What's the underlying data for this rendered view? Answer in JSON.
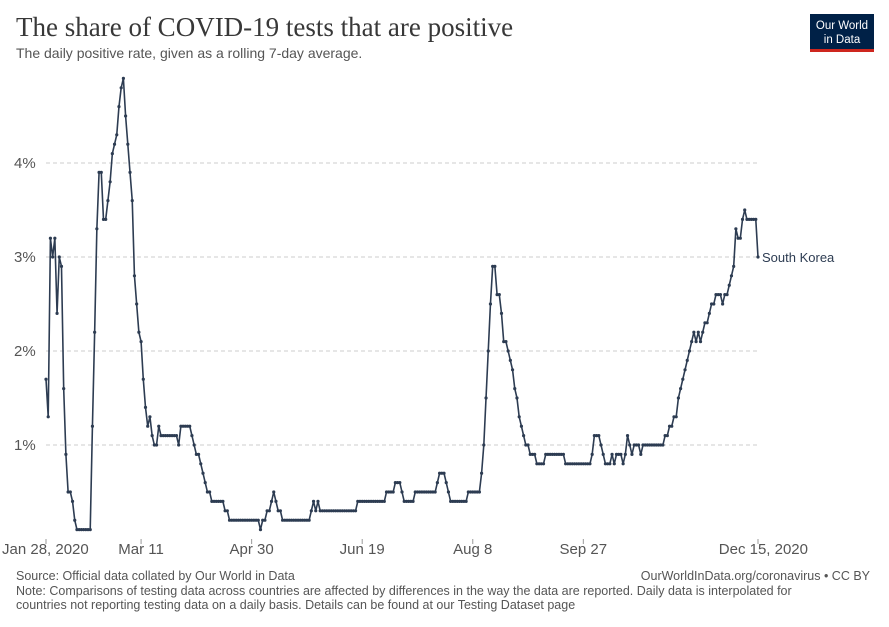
{
  "logo": [
    "Our World",
    "in Data"
  ],
  "footer": {
    "source": "Source: Official data collated by Our World in Data",
    "credit": "OurWorldInData.org/coronavirus • CC BY",
    "note": [
      "Note: Comparisons of testing data across countries are affected by differences in the way the data are reported. Daily data is interpolated for",
      "countries not reporting testing data on a daily basis. Details can be found at our Testing Dataset page"
    ]
  },
  "chart_data": {
    "type": "line",
    "title": "The share of COVID-19 tests that are positive",
    "subtitle": "The daily positive rate, given as a rolling 7-day average.",
    "xlim": [
      "2020-01-28",
      "2020-12-15"
    ],
    "xticks": [
      {
        "value": "2020-01-28",
        "label": "Jan 28, 2020"
      },
      {
        "value": "2020-03-11",
        "label": "Mar 11"
      },
      {
        "value": "2020-04-30",
        "label": "Apr 30"
      },
      {
        "value": "2020-06-19",
        "label": "Jun 19"
      },
      {
        "value": "2020-08-08",
        "label": "Aug 8"
      },
      {
        "value": "2020-09-27",
        "label": "Sep 27"
      },
      {
        "value": "2020-12-15",
        "label": "Dec 15, 2020"
      }
    ],
    "ylim": [
      0,
      5
    ],
    "yticks": [
      {
        "value": 1,
        "label": "1%"
      },
      {
        "value": 2,
        "label": "2%"
      },
      {
        "value": 3,
        "label": "3%"
      },
      {
        "value": 4,
        "label": "4%"
      }
    ],
    "grid": true,
    "x": [
      "2020-01-28",
      "2020-01-29",
      "2020-01-30",
      "2020-01-31",
      "2020-02-01",
      "2020-02-02",
      "2020-02-03",
      "2020-02-04",
      "2020-02-05",
      "2020-02-06",
      "2020-02-07",
      "2020-02-08",
      "2020-02-09",
      "2020-02-10",
      "2020-02-11",
      "2020-02-12",
      "2020-02-13",
      "2020-02-14",
      "2020-02-15",
      "2020-02-16",
      "2020-02-17",
      "2020-02-18",
      "2020-02-19",
      "2020-02-20",
      "2020-02-21",
      "2020-02-22",
      "2020-02-23",
      "2020-02-24",
      "2020-02-25",
      "2020-02-26",
      "2020-02-27",
      "2020-02-28",
      "2020-02-29",
      "2020-03-01",
      "2020-03-02",
      "2020-03-03",
      "2020-03-04",
      "2020-03-05",
      "2020-03-06",
      "2020-03-07",
      "2020-03-08",
      "2020-03-09",
      "2020-03-10",
      "2020-03-11",
      "2020-03-12",
      "2020-03-13",
      "2020-03-14",
      "2020-03-15",
      "2020-03-16",
      "2020-03-17",
      "2020-03-18",
      "2020-03-19",
      "2020-03-20",
      "2020-03-21",
      "2020-03-22",
      "2020-03-23",
      "2020-03-24",
      "2020-03-25",
      "2020-03-26",
      "2020-03-27",
      "2020-03-28",
      "2020-03-29",
      "2020-03-30",
      "2020-03-31",
      "2020-04-01",
      "2020-04-02",
      "2020-04-03",
      "2020-04-04",
      "2020-04-05",
      "2020-04-06",
      "2020-04-07",
      "2020-04-08",
      "2020-04-09",
      "2020-04-10",
      "2020-04-11",
      "2020-04-12",
      "2020-04-13",
      "2020-04-14",
      "2020-04-15",
      "2020-04-16",
      "2020-04-17",
      "2020-04-18",
      "2020-04-19",
      "2020-04-20",
      "2020-04-21",
      "2020-04-22",
      "2020-04-23",
      "2020-04-24",
      "2020-04-25",
      "2020-04-26",
      "2020-04-27",
      "2020-04-28",
      "2020-04-29",
      "2020-04-30",
      "2020-05-01",
      "2020-05-02",
      "2020-05-03",
      "2020-05-04",
      "2020-05-05",
      "2020-05-06",
      "2020-05-07",
      "2020-05-08",
      "2020-05-09",
      "2020-05-10",
      "2020-05-11",
      "2020-05-12",
      "2020-05-13",
      "2020-05-14",
      "2020-05-15",
      "2020-05-16",
      "2020-05-17",
      "2020-05-18",
      "2020-05-19",
      "2020-05-20",
      "2020-05-21",
      "2020-05-22",
      "2020-05-23",
      "2020-05-24",
      "2020-05-25",
      "2020-05-26",
      "2020-05-27",
      "2020-05-28",
      "2020-05-29",
      "2020-05-30",
      "2020-05-31",
      "2020-06-01",
      "2020-06-02",
      "2020-06-03",
      "2020-06-04",
      "2020-06-05",
      "2020-06-06",
      "2020-06-07",
      "2020-06-08",
      "2020-06-09",
      "2020-06-10",
      "2020-06-11",
      "2020-06-12",
      "2020-06-13",
      "2020-06-14",
      "2020-06-15",
      "2020-06-16",
      "2020-06-17",
      "2020-06-18",
      "2020-06-19",
      "2020-06-20",
      "2020-06-21",
      "2020-06-22",
      "2020-06-23",
      "2020-06-24",
      "2020-06-25",
      "2020-06-26",
      "2020-06-27",
      "2020-06-28",
      "2020-06-29",
      "2020-06-30",
      "2020-07-01",
      "2020-07-02",
      "2020-07-03",
      "2020-07-04",
      "2020-07-05",
      "2020-07-06",
      "2020-07-07",
      "2020-07-08",
      "2020-07-09",
      "2020-07-10",
      "2020-07-11",
      "2020-07-12",
      "2020-07-13",
      "2020-07-14",
      "2020-07-15",
      "2020-07-16",
      "2020-07-17",
      "2020-07-18",
      "2020-07-19",
      "2020-07-20",
      "2020-07-21",
      "2020-07-22",
      "2020-07-23",
      "2020-07-24",
      "2020-07-25",
      "2020-07-26",
      "2020-07-27",
      "2020-07-28",
      "2020-07-29",
      "2020-07-30",
      "2020-07-31",
      "2020-08-01",
      "2020-08-02",
      "2020-08-03",
      "2020-08-04",
      "2020-08-05",
      "2020-08-06",
      "2020-08-07",
      "2020-08-08",
      "2020-08-09",
      "2020-08-10",
      "2020-08-11",
      "2020-08-12",
      "2020-08-13",
      "2020-08-14",
      "2020-08-15",
      "2020-08-16",
      "2020-08-17",
      "2020-08-18",
      "2020-08-19",
      "2020-08-20",
      "2020-08-21",
      "2020-08-22",
      "2020-08-23",
      "2020-08-24",
      "2020-08-25",
      "2020-08-26",
      "2020-08-27",
      "2020-08-28",
      "2020-08-29",
      "2020-08-30",
      "2020-08-31",
      "2020-09-01",
      "2020-09-02",
      "2020-09-03",
      "2020-09-04",
      "2020-09-05",
      "2020-09-06",
      "2020-09-07",
      "2020-09-08",
      "2020-09-09",
      "2020-09-10",
      "2020-09-11",
      "2020-09-12",
      "2020-09-13",
      "2020-09-14",
      "2020-09-15",
      "2020-09-16",
      "2020-09-17",
      "2020-09-18",
      "2020-09-19",
      "2020-09-20",
      "2020-09-21",
      "2020-09-22",
      "2020-09-23",
      "2020-09-24",
      "2020-09-25",
      "2020-09-26",
      "2020-09-27",
      "2020-09-28",
      "2020-09-29",
      "2020-09-30",
      "2020-10-01",
      "2020-10-02",
      "2020-10-03",
      "2020-10-04",
      "2020-10-05",
      "2020-10-06",
      "2020-10-07",
      "2020-10-08",
      "2020-10-09",
      "2020-10-10",
      "2020-10-11",
      "2020-10-12",
      "2020-10-13",
      "2020-10-14",
      "2020-10-15",
      "2020-10-16",
      "2020-10-17",
      "2020-10-18",
      "2020-10-19",
      "2020-10-20",
      "2020-10-21",
      "2020-10-22",
      "2020-10-23",
      "2020-10-24",
      "2020-10-25",
      "2020-10-26",
      "2020-10-27",
      "2020-10-28",
      "2020-10-29",
      "2020-10-30",
      "2020-10-31",
      "2020-11-01",
      "2020-11-02",
      "2020-11-03",
      "2020-11-04",
      "2020-11-05",
      "2020-11-06",
      "2020-11-07",
      "2020-11-08",
      "2020-11-09",
      "2020-11-10",
      "2020-11-11",
      "2020-11-12",
      "2020-11-13",
      "2020-11-14",
      "2020-11-15",
      "2020-11-16",
      "2020-11-17",
      "2020-11-18",
      "2020-11-19",
      "2020-11-20",
      "2020-11-21",
      "2020-11-22",
      "2020-11-23",
      "2020-11-24",
      "2020-11-25",
      "2020-11-26",
      "2020-11-27",
      "2020-11-28",
      "2020-11-29",
      "2020-11-30",
      "2020-12-01",
      "2020-12-02",
      "2020-12-03",
      "2020-12-04",
      "2020-12-05",
      "2020-12-06",
      "2020-12-07",
      "2020-12-08",
      "2020-12-09",
      "2020-12-10",
      "2020-12-11",
      "2020-12-12",
      "2020-12-13",
      "2020-12-14",
      "2020-12-15"
    ],
    "series": [
      {
        "name": "South Korea",
        "color": "#2d3c52",
        "values": [
          1.7,
          1.3,
          3.2,
          3.0,
          3.2,
          2.4,
          3.0,
          2.9,
          1.6,
          0.9,
          0.5,
          0.5,
          0.4,
          0.2,
          0.1,
          0.1,
          0.1,
          0.1,
          0.1,
          0.1,
          0.1,
          1.2,
          2.2,
          3.3,
          3.9,
          3.9,
          3.4,
          3.4,
          3.6,
          3.8,
          4.1,
          4.2,
          4.3,
          4.6,
          4.8,
          4.9,
          4.5,
          4.2,
          3.9,
          3.6,
          2.8,
          2.5,
          2.2,
          2.1,
          1.7,
          1.4,
          1.2,
          1.3,
          1.1,
          1.0,
          1.0,
          1.2,
          1.1,
          1.1,
          1.1,
          1.1,
          1.1,
          1.1,
          1.1,
          1.1,
          1.0,
          1.2,
          1.2,
          1.2,
          1.2,
          1.2,
          1.1,
          1.0,
          0.9,
          0.9,
          0.8,
          0.7,
          0.6,
          0.5,
          0.5,
          0.4,
          0.4,
          0.4,
          0.4,
          0.4,
          0.4,
          0.3,
          0.3,
          0.2,
          0.2,
          0.2,
          0.2,
          0.2,
          0.2,
          0.2,
          0.2,
          0.2,
          0.2,
          0.2,
          0.2,
          0.2,
          0.2,
          0.1,
          0.2,
          0.2,
          0.3,
          0.3,
          0.4,
          0.5,
          0.4,
          0.3,
          0.3,
          0.2,
          0.2,
          0.2,
          0.2,
          0.2,
          0.2,
          0.2,
          0.2,
          0.2,
          0.2,
          0.2,
          0.2,
          0.2,
          0.3,
          0.4,
          0.3,
          0.4,
          0.3,
          0.3,
          0.3,
          0.3,
          0.3,
          0.3,
          0.3,
          0.3,
          0.3,
          0.3,
          0.3,
          0.3,
          0.3,
          0.3,
          0.3,
          0.3,
          0.3,
          0.4,
          0.4,
          0.4,
          0.4,
          0.4,
          0.4,
          0.4,
          0.4,
          0.4,
          0.4,
          0.4,
          0.4,
          0.4,
          0.5,
          0.5,
          0.5,
          0.5,
          0.6,
          0.6,
          0.6,
          0.5,
          0.4,
          0.4,
          0.4,
          0.4,
          0.4,
          0.5,
          0.5,
          0.5,
          0.5,
          0.5,
          0.5,
          0.5,
          0.5,
          0.5,
          0.5,
          0.6,
          0.7,
          0.7,
          0.7,
          0.6,
          0.5,
          0.4,
          0.4,
          0.4,
          0.4,
          0.4,
          0.4,
          0.4,
          0.4,
          0.5,
          0.5,
          0.5,
          0.5,
          0.5,
          0.5,
          0.7,
          1.0,
          1.5,
          2.0,
          2.5,
          2.9,
          2.9,
          2.6,
          2.6,
          2.4,
          2.1,
          2.1,
          2.0,
          1.9,
          1.8,
          1.6,
          1.5,
          1.3,
          1.2,
          1.1,
          1.0,
          1.0,
          0.9,
          0.9,
          0.9,
          0.8,
          0.8,
          0.8,
          0.8,
          0.9,
          0.9,
          0.9,
          0.9,
          0.9,
          0.9,
          0.9,
          0.9,
          0.9,
          0.8,
          0.8,
          0.8,
          0.8,
          0.8,
          0.8,
          0.8,
          0.8,
          0.8,
          0.8,
          0.8,
          0.8,
          0.9,
          1.1,
          1.1,
          1.1,
          1.0,
          0.9,
          0.8,
          0.8,
          0.8,
          0.9,
          0.8,
          0.9,
          0.9,
          0.9,
          0.8,
          0.9,
          1.1,
          1.0,
          0.9,
          1.0,
          1.0,
          1.0,
          0.9,
          1.0,
          1.0,
          1.0,
          1.0,
          1.0,
          1.0,
          1.0,
          1.0,
          1.0,
          1.0,
          1.1,
          1.1,
          1.2,
          1.2,
          1.3,
          1.3,
          1.5,
          1.6,
          1.7,
          1.8,
          1.9,
          2.0,
          2.1,
          2.2,
          2.1,
          2.2,
          2.1,
          2.2,
          2.3,
          2.3,
          2.4,
          2.5,
          2.5,
          2.6,
          2.6,
          2.6,
          2.5,
          2.6,
          2.6,
          2.7,
          2.8,
          2.9,
          3.3,
          3.2,
          3.2,
          3.4,
          3.5,
          3.4,
          3.4,
          3.4,
          3.4,
          3.4,
          3.0
        ]
      }
    ]
  }
}
